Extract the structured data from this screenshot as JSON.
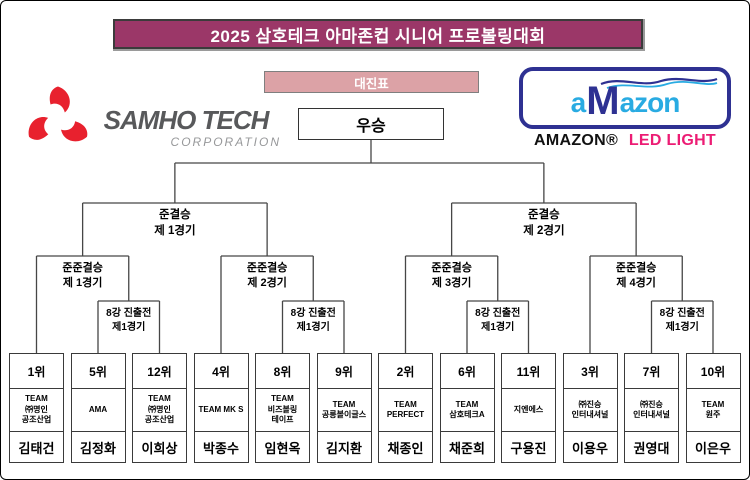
{
  "title": "2025 삼호테크 아마존컵 시니어 프로볼링대회",
  "bracket_banner": "대진표",
  "winner_label": "우승",
  "colors": {
    "title_bg": "#9b3768",
    "banner_bg": "#dca2a6",
    "line": "#464646",
    "samho_red": "#e8212e",
    "samho_blue": "#45b8ea",
    "samho_green": "#3cb044",
    "amazon_dark_blue": "#2e3192",
    "amazon_light_blue": "#29abe2",
    "amazon_pink": "#ec1c74"
  },
  "sponsors": {
    "samho": {
      "name": "SAMHO TECH",
      "subtitle": "CORPORATION"
    },
    "amazon": {
      "logo_a": "a",
      "logo_m": "M",
      "logo_rest": "azon",
      "caption_brand": "AMAZON®",
      "caption_product": "LED LIGHT"
    }
  },
  "rounds": {
    "semifinals": [
      [
        "준결승",
        "제 1경기"
      ],
      [
        "준결승",
        "제 2경기"
      ]
    ],
    "quarterfinals": [
      [
        "준준결승",
        "제 1경기"
      ],
      [
        "준준결승",
        "제 2경기"
      ],
      [
        "준준결승",
        "제 3경기"
      ],
      [
        "준준결승",
        "제 4경기"
      ]
    ],
    "playins": [
      [
        "8강 진출전",
        "제1경기"
      ],
      [
        "8강 진출전",
        "제1경기"
      ],
      [
        "8강 진출전",
        "제1경기"
      ],
      [
        "8강 진출전",
        "제1경기"
      ]
    ]
  },
  "players": [
    {
      "rank": "1위",
      "team": [
        "TEAM",
        "㈜명인",
        "공조산업"
      ],
      "name": "김태건"
    },
    {
      "rank": "5위",
      "team": [
        "AMA"
      ],
      "name": "김정화"
    },
    {
      "rank": "12위",
      "team": [
        "TEAM",
        "㈜명인",
        "공조산업"
      ],
      "name": "이희상"
    },
    {
      "rank": "4위",
      "team": [
        "TEAM MK S"
      ],
      "name": "박종수"
    },
    {
      "rank": "8위",
      "team": [
        "TEAM",
        "비즈볼링",
        "테이프"
      ],
      "name": "임현옥"
    },
    {
      "rank": "9위",
      "team": [
        "TEAM",
        "공릉볼이글스"
      ],
      "name": "김지환"
    },
    {
      "rank": "2위",
      "team": [
        "TEAM",
        "PERFECT"
      ],
      "name": "채종인"
    },
    {
      "rank": "6위",
      "team": [
        "TEAM",
        "삼호테크A"
      ],
      "name": "채준희"
    },
    {
      "rank": "11위",
      "team": [
        "지엔에스"
      ],
      "name": "구용진"
    },
    {
      "rank": "3위",
      "team": [
        "㈜진승",
        "인터내셔널"
      ],
      "name": "이용우"
    },
    {
      "rank": "7위",
      "team": [
        "㈜진승",
        "인터내셔널"
      ],
      "name": "권영대"
    },
    {
      "rank": "10위",
      "team": [
        "TEAM",
        "원주"
      ],
      "name": "이은우"
    }
  ]
}
